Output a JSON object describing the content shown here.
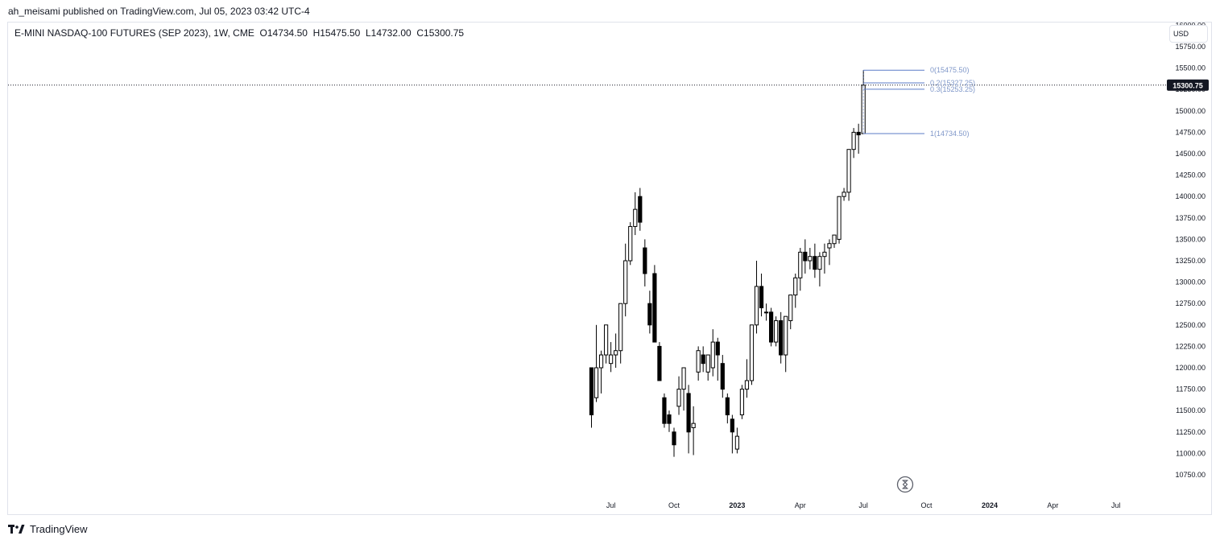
{
  "header": {
    "publish_text": "ah_meisami published on TradingView.com, Jul 05, 2023 03:42 UTC-4",
    "symbol_text": "E-MINI NASDAQ-100 FUTURES (SEP 2023), 1W, CME",
    "open": "O14734.50",
    "high": "H15475.50",
    "low": "L14732.00",
    "close": "C15300.75",
    "currency": "USD"
  },
  "footer": {
    "brand": "TradingView",
    "logo_icon": "tradingview-logo-icon"
  },
  "colors": {
    "candle_up_fill": "#ffffff",
    "candle_down_fill": "#000000",
    "candle_border": "#000000",
    "fib_line": "#5b7bc7",
    "fib_label": "#7f97c9",
    "price_tag_bg": "#131722"
  },
  "chart_data": {
    "type": "candlestick",
    "y_axis": {
      "ylim": [
        10600,
        16000
      ],
      "ticks": [
        10750,
        11000,
        11250,
        11500,
        11750,
        12000,
        12250,
        12500,
        12750,
        13000,
        13250,
        13500,
        13750,
        14000,
        14250,
        14500,
        14750,
        15000,
        15250,
        15500,
        15750
      ],
      "tick_labels": [
        "10750.00",
        "11000.00",
        "11250.00",
        "11500.00",
        "11750.00",
        "12000.00",
        "12250.00",
        "12500.00",
        "12750.00",
        "13000.00",
        "13250.00",
        "13500.00",
        "13750.00",
        "14000.00",
        "14250.00",
        "14500.00",
        "14750.00",
        "15000.00",
        "15250.00",
        "15500.00",
        "15750.00"
      ],
      "partial_top_label": "16000.00"
    },
    "x_axis": {
      "labels": [
        {
          "text": "Jul",
          "bold": false
        },
        {
          "text": "Oct",
          "bold": false
        },
        {
          "text": "2023",
          "bold": true
        },
        {
          "text": "Apr",
          "bold": false
        },
        {
          "text": "Jul",
          "bold": false
        },
        {
          "text": "Oct",
          "bold": false
        },
        {
          "text": "2024",
          "bold": true
        },
        {
          "text": "Apr",
          "bold": false
        },
        {
          "text": "Jul",
          "bold": false
        }
      ],
      "label_week_index": [
        4,
        17,
        30,
        43,
        56,
        69,
        82,
        95,
        108
      ]
    },
    "current_price": "15300.75",
    "candles": [
      [
        12000,
        12000,
        11300,
        11450
      ],
      [
        11650,
        12500,
        11600,
        12000
      ],
      [
        12000,
        12200,
        11700,
        12150
      ],
      [
        12150,
        12500,
        12050,
        12500
      ],
      [
        12050,
        12300,
        11950,
        12150
      ],
      [
        12150,
        12400,
        12000,
        12200
      ],
      [
        12200,
        12750,
        12050,
        12750
      ],
      [
        12750,
        13450,
        12600,
        13250
      ],
      [
        13250,
        13700,
        13200,
        13650
      ],
      [
        13650,
        14050,
        13550,
        13850
      ],
      [
        14000,
        14100,
        13600,
        13700
      ],
      [
        13400,
        13500,
        12950,
        13100
      ],
      [
        12750,
        12900,
        12400,
        12500
      ],
      [
        13100,
        13200,
        12300,
        12300
      ],
      [
        12250,
        12300,
        11850,
        11850
      ],
      [
        11650,
        11700,
        11300,
        11350
      ],
      [
        11450,
        11500,
        11250,
        11350
      ],
      [
        11250,
        11300,
        10960,
        11100
      ],
      [
        11550,
        11900,
        11450,
        11750
      ],
      [
        11750,
        12000,
        11500,
        12000
      ],
      [
        11700,
        11800,
        11000,
        11250
      ],
      [
        11300,
        11550,
        10980,
        11350
      ],
      [
        11950,
        12250,
        11850,
        12200
      ],
      [
        12150,
        12250,
        11950,
        12050
      ],
      [
        11950,
        12150,
        11850,
        12150
      ],
      [
        12000,
        12450,
        11900,
        12300
      ],
      [
        12300,
        12350,
        11850,
        12150
      ],
      [
        12050,
        12150,
        11650,
        11750
      ],
      [
        11650,
        11700,
        11350,
        11450
      ],
      [
        11400,
        11450,
        11000,
        11250
      ],
      [
        11050,
        11300,
        11000,
        11200
      ],
      [
        11450,
        11800,
        11400,
        11750
      ],
      [
        11750,
        12100,
        11650,
        11850
      ],
      [
        11850,
        12500,
        11800,
        12500
      ],
      [
        12500,
        13250,
        12400,
        12950
      ],
      [
        12950,
        13100,
        12600,
        12700
      ],
      [
        12650,
        12750,
        12550,
        12650
      ],
      [
        12650,
        12700,
        12250,
        12300
      ],
      [
        12300,
        12600,
        12250,
        12550
      ],
      [
        12550,
        12650,
        12050,
        12150
      ],
      [
        12150,
        12600,
        11950,
        12600
      ],
      [
        12550,
        12850,
        12450,
        12850
      ],
      [
        12850,
        13100,
        12700,
        13050
      ],
      [
        13050,
        13400,
        12900,
        13350
      ],
      [
        13350,
        13500,
        13100,
        13250
      ],
      [
        13250,
        13400,
        13150,
        13300
      ],
      [
        13300,
        13450,
        13050,
        13150
      ],
      [
        13150,
        13350,
        12950,
        13300
      ],
      [
        13300,
        13450,
        13100,
        13350
      ],
      [
        13400,
        13500,
        13200,
        13450
      ],
      [
        13450,
        13550,
        13400,
        13550
      ],
      [
        13500,
        14000,
        13450,
        14000
      ],
      [
        14000,
        14100,
        13950,
        14050
      ],
      [
        14050,
        14550,
        13950,
        14550
      ],
      [
        14550,
        14800,
        14450,
        14750
      ],
      [
        14750,
        14850,
        14500,
        14720
      ],
      [
        14734.5,
        15475.5,
        14732,
        15300.75
      ]
    ],
    "fib_levels": [
      {
        "label": "0(15475.50)",
        "value": 15475.5
      },
      {
        "label": "0.2(15327.25)",
        "value": 15327.25
      },
      {
        "label": "0.3(15253.25)",
        "value": 15253.25
      },
      {
        "label": "1(14734.50)",
        "value": 14734.5
      }
    ]
  }
}
